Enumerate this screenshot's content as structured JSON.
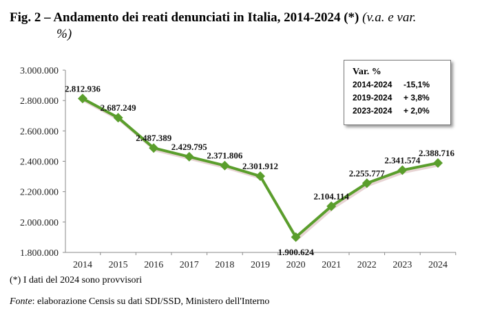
{
  "title": {
    "bold": "Fig. 2 – Andamento dei reati denunciati in Italia, 2014-2024 (*)",
    "italic_a": "(v.a. e var.",
    "italic_b": "%)"
  },
  "legend_box": {
    "heading": "Var. %",
    "rows": [
      {
        "period": "2014-2024",
        "value": "-15,1%"
      },
      {
        "period": "2019-2024",
        "value": "+ 3,8%"
      },
      {
        "period": "2023-2024",
        "value": "+ 2,0%"
      }
    ]
  },
  "footnote": "(*) I dati del 2024 sono provvisori",
  "source": {
    "label": "Fonte",
    "text": ": elaborazione Censis su dati SDI/SSD, Ministero dell'Interno"
  },
  "chart_data": {
    "type": "line",
    "categories": [
      "2014",
      "2015",
      "2016",
      "2017",
      "2018",
      "2019",
      "2020",
      "2021",
      "2022",
      "2023",
      "2024"
    ],
    "values": [
      2812936,
      2687249,
      2487389,
      2429795,
      2371806,
      2301912,
      1900624,
      2104114,
      2255777,
      2341574,
      2388716
    ],
    "data_labels": [
      "2.812.936",
      "2.687.249",
      "2.487.389",
      "2.429.795",
      "2.371.806",
      "2.301.912",
      "1.900.624",
      "2.104.114",
      "2.255.777",
      "2.341.574",
      "2.388.716"
    ],
    "ylim": [
      1800000,
      3000000
    ],
    "yticks": [
      3000000,
      2800000,
      2600000,
      2400000,
      2200000,
      2000000,
      1800000
    ],
    "ytick_labels": [
      "3.000.000",
      "2.800.000",
      "2.600.000",
      "2.400.000",
      "2.200.000",
      "2.000.000",
      "1.800.000"
    ],
    "color": "#5a9e2c"
  }
}
